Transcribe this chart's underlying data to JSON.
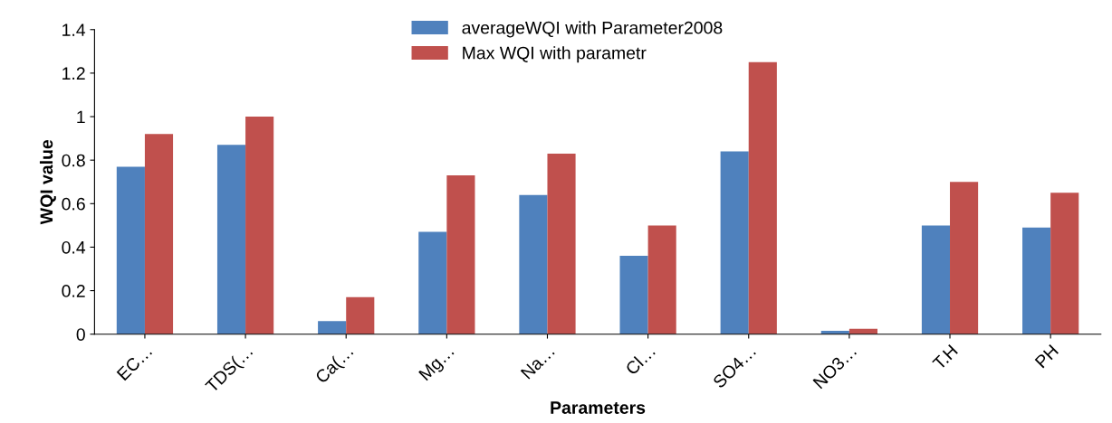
{
  "chart_data": {
    "type": "bar",
    "xlabel": "Parameters",
    "ylabel": "WQI value",
    "categories": [
      "EC…",
      "TDS(…",
      "Ca(…",
      "Mg…",
      "Na…",
      "Cl…",
      "SO4…",
      "NO3…",
      "T.H",
      "PH"
    ],
    "series": [
      {
        "name": "averageWQI with Parameter2008",
        "color": "#4f81bd",
        "values": [
          0.77,
          0.87,
          0.06,
          0.47,
          0.64,
          0.36,
          0.84,
          0.015,
          0.5,
          0.49
        ]
      },
      {
        "name": "Max WQI with parametr",
        "color": "#c0504d",
        "values": [
          0.92,
          1.0,
          0.17,
          0.73,
          0.83,
          0.5,
          1.25,
          0.025,
          0.7,
          0.65
        ]
      }
    ],
    "ylim": [
      0,
      1.4
    ],
    "yticks": [
      0,
      0.2,
      0.4,
      0.6,
      0.8,
      1,
      1.2,
      1.4
    ],
    "legend": "top",
    "grid": false
  }
}
